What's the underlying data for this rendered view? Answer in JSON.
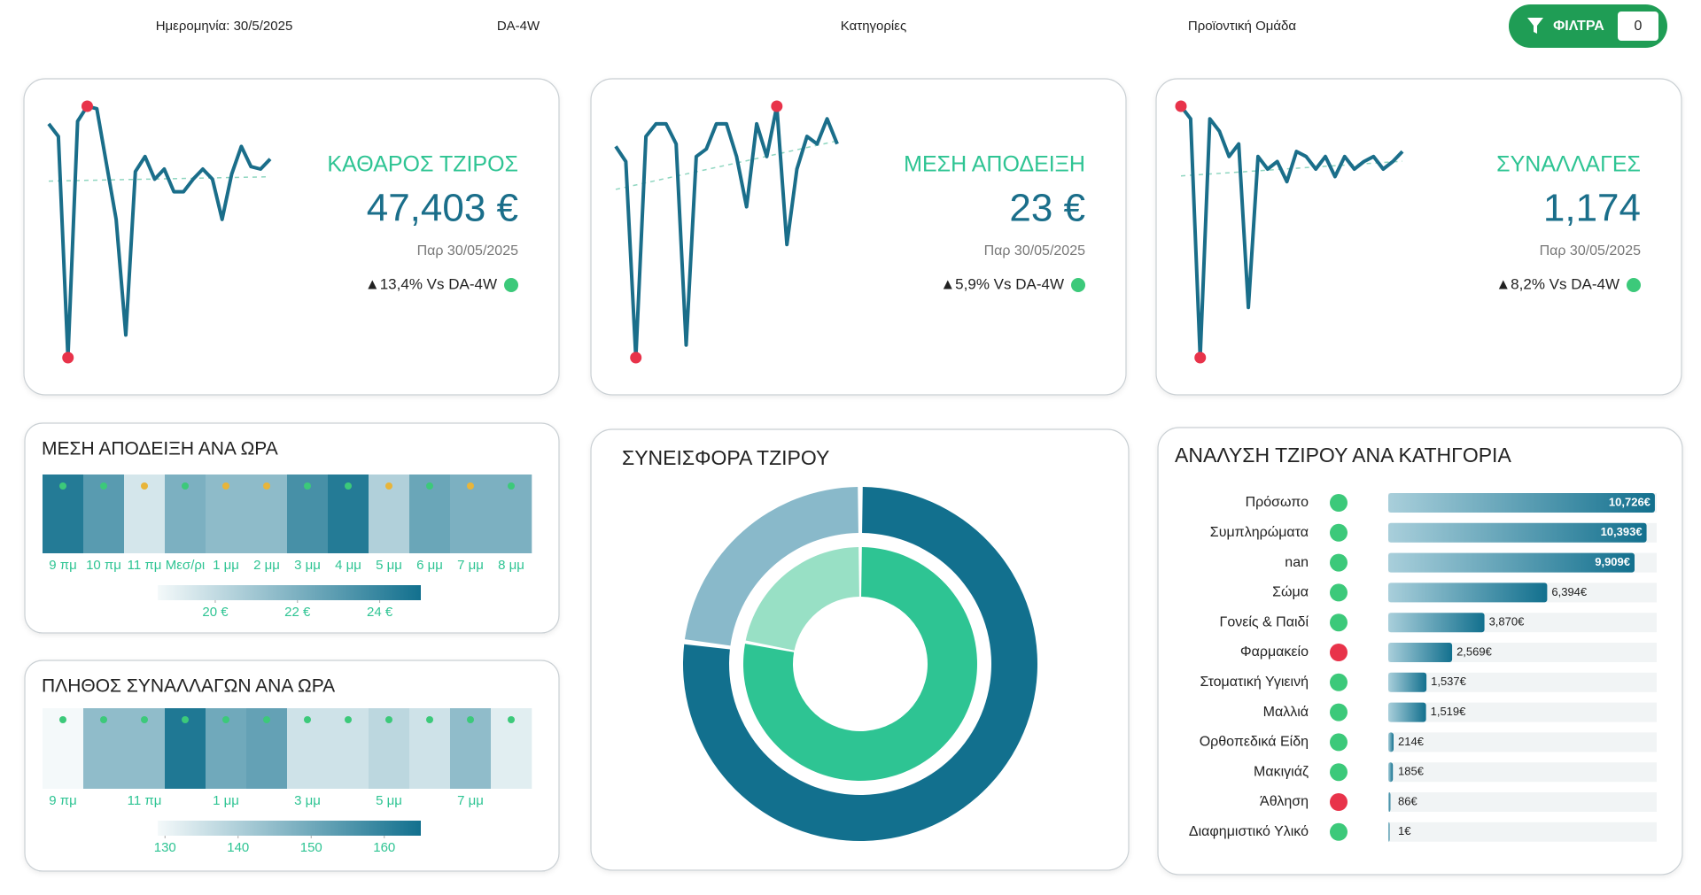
{
  "header": {
    "date": "Ημερομηνία: 30/5/2025",
    "compare": "DA-4W",
    "categories": "Κατηγορίες",
    "product_group": "Προϊοντική Ομάδα",
    "filter_button": "ΦΙΛΤΡΑ",
    "filter_count": "0"
  },
  "kpis": [
    {
      "title": "ΚΑΘΑΡΟΣ ΤΖΙΡΟΣ",
      "value": "47,403 €",
      "date": "Παρ 30/05/2025",
      "change": "▲13,4% Vs DA-4W",
      "status_color": "#3cc97a"
    },
    {
      "title": "ΜΕΣΗ ΑΠΟΔΕΙΞΗ",
      "value": "23 €",
      "date": "Παρ 30/05/2025",
      "change": "▲5,9% Vs DA-4W",
      "status_color": "#3cc97a"
    },
    {
      "title": "ΣΥΝΑΛΛΑΓΕΣ",
      "value": "1,174",
      "date": "Παρ 30/05/2025",
      "change": "▲8,2% Vs DA-4W",
      "status_color": "#3cc97a"
    }
  ],
  "chart_data": [
    {
      "type": "line",
      "color": "#1a6e8a",
      "marker_color": "#e8334a",
      "trend_color": "#8fd6c0",
      "ylim": [
        0,
        100
      ],
      "values": [
        93,
        88,
        0,
        94,
        100,
        99,
        77,
        55,
        9,
        74,
        80,
        71,
        75,
        66,
        66,
        71,
        75,
        71,
        55,
        73,
        84,
        76,
        75,
        79
      ]
    },
    {
      "type": "line",
      "color": "#1a6e8a",
      "marker_color": "#e8334a",
      "trend_color": "#8fd6c0",
      "ylim": [
        0,
        100
      ],
      "values": [
        84,
        78,
        0,
        88,
        93,
        93,
        85,
        5,
        80,
        83,
        93,
        93,
        80,
        60,
        93,
        80,
        100,
        45,
        75,
        88,
        85,
        95,
        85
      ]
    },
    {
      "type": "line",
      "color": "#1a6e8a",
      "marker_color": "#e8334a",
      "trend_color": "#8fd6c0",
      "ylim": [
        0,
        100
      ],
      "values": [
        100,
        95,
        0,
        95,
        90,
        80,
        85,
        20,
        80,
        75,
        78,
        70,
        82,
        80,
        75,
        80,
        72,
        80,
        75,
        78,
        80,
        75,
        78,
        82
      ]
    },
    {
      "type": "heatmap",
      "title": "ΜΕΣΗ ΑΠΟΔΕΙΞΗ ΑΝΑ ΩΡΑ",
      "categories": [
        "9 πμ",
        "10 πμ",
        "11 πμ",
        "Μεσ/ρι",
        "1 μμ",
        "2 μμ",
        "3 μμ",
        "4 μμ",
        "5 μμ",
        "6 μμ",
        "7 μμ",
        "8 μμ"
      ],
      "values": [
        24.5,
        23,
        19.5,
        22,
        21.5,
        21.5,
        23.5,
        24.5,
        20.5,
        22.5,
        22,
        22
      ],
      "dot_colors": [
        "#3cc97a",
        "#3cc97a",
        "#e8b53a",
        "#3cc97a",
        "#e8b53a",
        "#e8b53a",
        "#3cc97a",
        "#3cc97a",
        "#e8b53a",
        "#3cc97a",
        "#e8b53a",
        "#3cc97a"
      ],
      "color_range": [
        "#f4f9fa",
        "#12708e"
      ],
      "clim": [
        18.6,
        25
      ],
      "cticks": [
        {
          "value": 20,
          "label": "20 €"
        },
        {
          "value": 22,
          "label": "22 €"
        },
        {
          "value": 24,
          "label": "24 €"
        }
      ]
    },
    {
      "type": "heatmap",
      "title": "ΠΛΗΘΟΣ ΣΥΝΑΛΛΑΓΩΝ ΑΝΑ ΩΡΑ",
      "categories": [
        "9 πμ",
        null,
        "11 πμ",
        null,
        "1 μμ",
        null,
        "3 μμ",
        null,
        "5 μμ",
        null,
        "7 μμ",
        null
      ],
      "values": [
        127,
        145,
        145,
        163,
        150,
        152,
        135,
        135,
        138,
        135,
        145,
        132
      ],
      "dot_colors": [
        "#3cc97a",
        "#3cc97a",
        "#3cc97a",
        "#3cc97a",
        "#3cc97a",
        "#3cc97a",
        "#3cc97a",
        "#3cc97a",
        "#3cc97a",
        "#3cc97a",
        "#3cc97a",
        "#3cc97a"
      ],
      "color_range": [
        "#f4f9fa",
        "#12708e"
      ],
      "clim": [
        129,
        165
      ],
      "cticks": [
        130,
        140,
        150,
        160
      ]
    },
    {
      "type": "donut",
      "title": "ΣΥΝΕΙΣΦΟΡΑ ΤΖΙΡΟΥ",
      "rings": [
        {
          "colors": [
            "#12708e",
            "#89b9ca"
          ],
          "values": [
            77,
            23
          ]
        },
        {
          "colors": [
            "#2ec493",
            "#98e0c5"
          ],
          "values": [
            78,
            22
          ]
        }
      ]
    },
    {
      "type": "bar",
      "orientation": "horizontal",
      "title": "ΑΝΑΛΥΣΗ ΤΖΙΡΟΥ ΑΝΑ ΚΑΤΗΓΟΡΙΑ",
      "categories": [
        "Πρόσωπο",
        "Συμπληρώματα",
        "nan",
        "Σώμα",
        "Γονείς & Παιδί",
        "Φαρμακείο",
        "Στοματική Υγιεινή",
        "Μαλλιά",
        "Ορθοπεδικά Είδη",
        "Μακιγιάζ",
        "Άθληση",
        "Διαφημιστικό Υλικό"
      ],
      "values": [
        10726,
        10393,
        9909,
        6394,
        3870,
        2569,
        1537,
        1519,
        214,
        185,
        86,
        1
      ],
      "value_labels": [
        "10,726€",
        "10,393€",
        "9,909€",
        "6,394€",
        "3,870€",
        "2,569€",
        "1,537€",
        "1,519€",
        "214€",
        "185€",
        "86€",
        "1€"
      ],
      "status_colors": [
        "#3cc97a",
        "#3cc97a",
        "#3cc97a",
        "#3cc97a",
        "#3cc97a",
        "#e8334a",
        "#3cc97a",
        "#3cc97a",
        "#3cc97a",
        "#3cc97a",
        "#e8334a",
        "#3cc97a"
      ],
      "color_range": [
        "#a9cfdb",
        "#12708e"
      ],
      "xlim": [
        0,
        10800
      ]
    }
  ]
}
